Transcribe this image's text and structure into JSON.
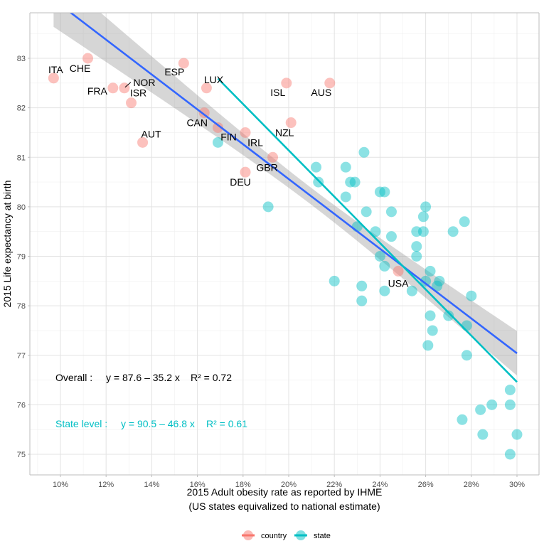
{
  "chart_data": {
    "type": "scatter",
    "title": "",
    "xlabel": "2015 Adult obesity rate as reported by IHME",
    "xlabel_line2": "(US states equivalized to national estimate)",
    "ylabel": "2015 Life expectancy at birth",
    "xlim": [
      8.7,
      31.0
    ],
    "ylim": [
      74.55,
      83.9
    ],
    "x_ticks": [
      10,
      12,
      14,
      16,
      18,
      20,
      22,
      24,
      26,
      28,
      30
    ],
    "x_tick_labels": [
      "10%",
      "12%",
      "14%",
      "16%",
      "18%",
      "20%",
      "22%",
      "24%",
      "26%",
      "28%",
      "30%"
    ],
    "y_ticks": [
      75,
      76,
      77,
      78,
      79,
      80,
      81,
      82,
      83
    ],
    "y_tick_labels": [
      "75",
      "76",
      "77",
      "78",
      "79",
      "80",
      "81",
      "82",
      "83"
    ],
    "grid": true,
    "legend_position": "bottom",
    "colors": {
      "country": "#F8766D",
      "state": "#00BFC4",
      "overall_fit": "#3366FF",
      "ci_band": "#999999"
    },
    "legend": [
      {
        "key": "country",
        "label": "country"
      },
      {
        "key": "state",
        "label": "state"
      }
    ],
    "series": [
      {
        "name": "country",
        "points": [
          {
            "label": "ITA",
            "x": 9.7,
            "y": 82.6
          },
          {
            "label": "CHE",
            "x": 11.2,
            "y": 83.0
          },
          {
            "label": "FRA",
            "x": 12.3,
            "y": 82.4
          },
          {
            "label": "NOR",
            "x": 12.8,
            "y": 82.4
          },
          {
            "label": "ISR",
            "x": 13.1,
            "y": 82.1
          },
          {
            "label": "AUT",
            "x": 13.6,
            "y": 81.3
          },
          {
            "label": "ESP",
            "x": 15.4,
            "y": 82.9
          },
          {
            "label": "LUX",
            "x": 16.4,
            "y": 82.4
          },
          {
            "label": "CAN",
            "x": 16.3,
            "y": 81.9
          },
          {
            "label": "FIN",
            "x": 16.9,
            "y": 81.6
          },
          {
            "label": "IRL",
            "x": 18.1,
            "y": 81.5
          },
          {
            "label": "GBR",
            "x": 19.3,
            "y": 81.0
          },
          {
            "label": "DEU",
            "x": 18.1,
            "y": 80.7
          },
          {
            "label": "ISL",
            "x": 19.9,
            "y": 82.5
          },
          {
            "label": "AUS",
            "x": 21.8,
            "y": 82.5
          },
          {
            "label": "NZL",
            "x": 20.1,
            "y": 81.7
          },
          {
            "label": "USA",
            "x": 24.8,
            "y": 78.7
          }
        ]
      },
      {
        "name": "state",
        "points": [
          {
            "x": 16.9,
            "y": 81.3
          },
          {
            "x": 19.1,
            "y": 80.0
          },
          {
            "x": 21.2,
            "y": 80.8
          },
          {
            "x": 21.3,
            "y": 80.5
          },
          {
            "x": 22.0,
            "y": 78.5
          },
          {
            "x": 22.5,
            "y": 80.8
          },
          {
            "x": 22.5,
            "y": 80.2
          },
          {
            "x": 22.7,
            "y": 80.5
          },
          {
            "x": 22.9,
            "y": 80.5
          },
          {
            "x": 23.0,
            "y": 79.6
          },
          {
            "x": 23.2,
            "y": 78.4
          },
          {
            "x": 23.2,
            "y": 78.1
          },
          {
            "x": 23.3,
            "y": 81.1
          },
          {
            "x": 23.4,
            "y": 79.9
          },
          {
            "x": 23.8,
            "y": 79.5
          },
          {
            "x": 24.0,
            "y": 80.3
          },
          {
            "x": 24.0,
            "y": 79.0
          },
          {
            "x": 24.2,
            "y": 78.8
          },
          {
            "x": 24.2,
            "y": 78.3
          },
          {
            "x": 24.2,
            "y": 80.3
          },
          {
            "x": 24.5,
            "y": 79.4
          },
          {
            "x": 24.5,
            "y": 79.9
          },
          {
            "x": 25.4,
            "y": 78.3
          },
          {
            "x": 25.6,
            "y": 79.5
          },
          {
            "x": 25.6,
            "y": 79.2
          },
          {
            "x": 25.6,
            "y": 79.0
          },
          {
            "x": 25.9,
            "y": 79.8
          },
          {
            "x": 25.9,
            "y": 79.5
          },
          {
            "x": 26.0,
            "y": 80.0
          },
          {
            "x": 26.0,
            "y": 78.5
          },
          {
            "x": 26.1,
            "y": 77.2
          },
          {
            "x": 26.2,
            "y": 78.7
          },
          {
            "x": 26.2,
            "y": 77.8
          },
          {
            "x": 26.3,
            "y": 77.5
          },
          {
            "x": 26.5,
            "y": 78.4
          },
          {
            "x": 26.6,
            "y": 78.5
          },
          {
            "x": 27.0,
            "y": 77.8
          },
          {
            "x": 27.2,
            "y": 79.5
          },
          {
            "x": 27.6,
            "y": 75.7
          },
          {
            "x": 27.7,
            "y": 79.7
          },
          {
            "x": 27.8,
            "y": 77.6
          },
          {
            "x": 27.8,
            "y": 77.0
          },
          {
            "x": 28.0,
            "y": 78.2
          },
          {
            "x": 28.4,
            "y": 75.9
          },
          {
            "x": 28.5,
            "y": 75.4
          },
          {
            "x": 28.9,
            "y": 76.0
          },
          {
            "x": 29.7,
            "y": 76.3
          },
          {
            "x": 29.7,
            "y": 76.0
          },
          {
            "x": 29.7,
            "y": 75.0
          },
          {
            "x": 30.0,
            "y": 75.4
          }
        ]
      }
    ],
    "fits": [
      {
        "name": "overall",
        "intercept": 87.6,
        "slope": -35.2,
        "x_range": [
          9.7,
          30.0
        ],
        "ci_halfwidth_ends": [
          0.55,
          0.45
        ],
        "ci_halfwidth_center": 0.17,
        "ci_center_x": 21.0,
        "annotation_label": "Overall :",
        "annotation_eq": "y = 87.6 – 35.2 x",
        "annotation_r2": "R² = 0.72"
      },
      {
        "name": "state",
        "intercept": 90.5,
        "slope": -46.8,
        "x_range": [
          16.9,
          30.0
        ],
        "annotation_label": "State level :",
        "annotation_eq": "y = 90.5 – 46.8 x",
        "annotation_r2": "R² = 0.61"
      }
    ]
  }
}
